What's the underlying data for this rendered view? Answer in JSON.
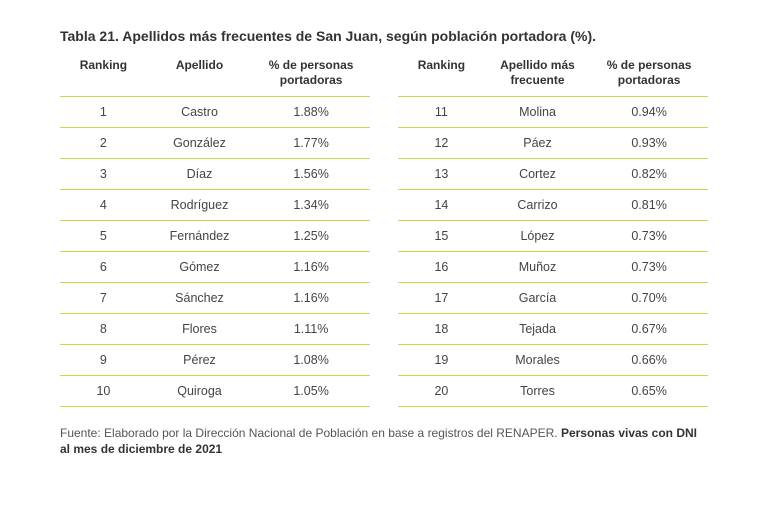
{
  "title": "Tabla 21. Apellidos más frecuentes de San Juan, según población portadora (%).",
  "headers_left": {
    "ranking": "Ranking",
    "apellido": "Apellido",
    "pct": "% de personas portadoras"
  },
  "headers_right": {
    "ranking": "Ranking",
    "apellido": "Apellido más frecuente",
    "pct": "% de personas portadoras"
  },
  "left": [
    {
      "rank": "1",
      "name": "Castro",
      "pct": "1.88%"
    },
    {
      "rank": "2",
      "name": "González",
      "pct": "1.77%"
    },
    {
      "rank": "3",
      "name": "Díaz",
      "pct": "1.56%"
    },
    {
      "rank": "4",
      "name": "Rodríguez",
      "pct": "1.34%"
    },
    {
      "rank": "5",
      "name": "Fernández",
      "pct": "1.25%"
    },
    {
      "rank": "6",
      "name": "Gómez",
      "pct": "1.16%"
    },
    {
      "rank": "7",
      "name": "Sánchez",
      "pct": "1.16%"
    },
    {
      "rank": "8",
      "name": "Flores",
      "pct": "1.11%"
    },
    {
      "rank": "9",
      "name": "Pérez",
      "pct": "1.08%"
    },
    {
      "rank": "10",
      "name": "Quiroga",
      "pct": "1.05%"
    }
  ],
  "right": [
    {
      "rank": "11",
      "name": "Molina",
      "pct": "0.94%"
    },
    {
      "rank": "12",
      "name": "Páez",
      "pct": "0.93%"
    },
    {
      "rank": "13",
      "name": "Cortez",
      "pct": "0.82%"
    },
    {
      "rank": "14",
      "name": "Carrizo",
      "pct": "0.81%"
    },
    {
      "rank": "15",
      "name": "López",
      "pct": "0.73%"
    },
    {
      "rank": "16",
      "name": "Muñoz",
      "pct": "0.73%"
    },
    {
      "rank": "17",
      "name": "García",
      "pct": "0.70%"
    },
    {
      "rank": "18",
      "name": "Tejada",
      "pct": "0.67%"
    },
    {
      "rank": "19",
      "name": "Morales",
      "pct": "0.66%"
    },
    {
      "rank": "20",
      "name": "Torres",
      "pct": "0.65%"
    }
  ],
  "footnote_plain": "Fuente: Elaborado por la Dirección Nacional de Población en base a registros del RENAPER. ",
  "footnote_bold": "Personas vivas con DNI al mes de diciembre de 2021",
  "style": {
    "border_color": "#c7d94e",
    "font_family": "Arial",
    "title_fontsize": 14,
    "body_fontsize": 12.5
  }
}
